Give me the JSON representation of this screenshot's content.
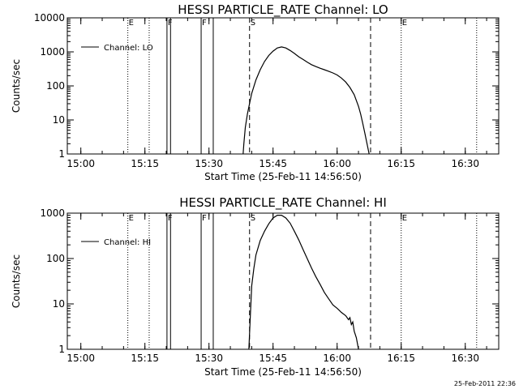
{
  "footer_timestamp": "25-Feb-2011 22:36",
  "chart_data": [
    {
      "type": "line",
      "title": "HESSI PARTICLE_RATE Channel: LO",
      "xlabel": "Start Time (25-Feb-11 14:56:50)",
      "ylabel": "Counts/sec",
      "y_scale": "log",
      "ylim": [
        1,
        10000
      ],
      "xlim": [
        "14:56:50",
        "16:37:50"
      ],
      "x_ticks": [
        "15:00",
        "15:15",
        "15:30",
        "15:45",
        "16:00",
        "16:15",
        "16:30"
      ],
      "y_ticks": [
        "1",
        "10",
        "100",
        "1000",
        "10000"
      ],
      "legend": {
        "position": "top-left",
        "entries": [
          "Channel: LO"
        ]
      },
      "grid": false,
      "series": [
        {
          "name": "Channel: LO",
          "x": [
            "15:38:00",
            "15:38:10",
            "15:38:30",
            "15:39:00",
            "15:39:30",
            "15:40:00",
            "15:41:00",
            "15:42:00",
            "15:43:00",
            "15:44:00",
            "15:45:00",
            "15:46:00",
            "15:47:00",
            "15:48:00",
            "15:49:00",
            "15:50:00",
            "15:51:00",
            "15:52:00",
            "15:53:00",
            "15:54:00",
            "15:55:00",
            "15:56:00",
            "15:57:00",
            "15:58:00",
            "15:59:00",
            "16:00:00",
            "16:01:00",
            "16:02:00",
            "16:03:00",
            "16:04:00",
            "16:05:00",
            "16:05:30",
            "16:06:00",
            "16:06:30",
            "16:07:00",
            "16:07:30"
          ],
          "y": [
            1,
            2,
            6,
            15,
            30,
            60,
            150,
            300,
            520,
            780,
            1050,
            1300,
            1400,
            1300,
            1100,
            900,
            720,
            600,
            500,
            420,
            370,
            330,
            300,
            270,
            240,
            210,
            170,
            130,
            90,
            55,
            25,
            15,
            8,
            4,
            2,
            1
          ]
        }
      ],
      "vertical_markers": [
        {
          "time": "15:11:00",
          "style": "dotted",
          "label": "E"
        },
        {
          "time": "15:16:00",
          "style": "dotted",
          "label": ""
        },
        {
          "time": "15:20:10",
          "style": "solid",
          "label": "F"
        },
        {
          "time": "15:21:00",
          "style": "solid",
          "label": ""
        },
        {
          "time": "15:28:10",
          "style": "solid",
          "label": "F"
        },
        {
          "time": "15:31:00",
          "style": "solid",
          "label": ""
        },
        {
          "time": "15:39:30",
          "style": "dashed",
          "label": "S"
        },
        {
          "time": "16:07:50",
          "style": "dashed",
          "label": ""
        },
        {
          "time": "16:15:00",
          "style": "dotted",
          "label": "E"
        },
        {
          "time": "16:32:40",
          "style": "dotted",
          "label": ""
        }
      ]
    },
    {
      "type": "line",
      "title": "HESSI PARTICLE_RATE Channel: HI",
      "xlabel": "Start Time (25-Feb-11 14:56:50)",
      "ylabel": "Counts/sec",
      "y_scale": "log",
      "ylim": [
        1,
        1000
      ],
      "xlim": [
        "14:56:50",
        "16:37:50"
      ],
      "x_ticks": [
        "15:00",
        "15:15",
        "15:30",
        "15:45",
        "16:00",
        "16:15",
        "16:30"
      ],
      "y_ticks": [
        "1",
        "10",
        "100",
        "1000"
      ],
      "legend": {
        "position": "top-left",
        "entries": [
          "Channel: HI"
        ]
      },
      "grid": false,
      "series": [
        {
          "name": "Channel: HI",
          "x": [
            "15:39:20",
            "15:39:40",
            "15:40:00",
            "15:40:30",
            "15:41:00",
            "15:42:00",
            "15:43:00",
            "15:44:00",
            "15:45:00",
            "15:46:00",
            "15:47:00",
            "15:48:00",
            "15:49:00",
            "15:50:00",
            "15:51:00",
            "15:52:00",
            "15:53:00",
            "15:54:00",
            "15:55:00",
            "15:56:00",
            "15:57:00",
            "15:58:00",
            "15:59:00",
            "16:00:00",
            "16:01:00",
            "16:02:00",
            "16:02:40",
            "16:03:00",
            "16:03:20",
            "16:03:40",
            "16:04:00",
            "16:04:30",
            "16:05:00"
          ],
          "y": [
            1,
            5,
            25,
            60,
            120,
            250,
            400,
            580,
            780,
            900,
            900,
            780,
            600,
            400,
            260,
            160,
            100,
            62,
            40,
            27,
            18,
            13,
            9.5,
            8,
            6.5,
            5.5,
            4.5,
            5,
            3.5,
            4,
            2.5,
            1.8,
            1
          ]
        }
      ],
      "vertical_markers": [
        {
          "time": "15:11:00",
          "style": "dotted",
          "label": "E"
        },
        {
          "time": "15:16:00",
          "style": "dotted",
          "label": ""
        },
        {
          "time": "15:20:10",
          "style": "solid",
          "label": "F"
        },
        {
          "time": "15:21:00",
          "style": "solid",
          "label": ""
        },
        {
          "time": "15:28:10",
          "style": "solid",
          "label": "F"
        },
        {
          "time": "15:31:00",
          "style": "solid",
          "label": ""
        },
        {
          "time": "15:39:30",
          "style": "dashed",
          "label": "S"
        },
        {
          "time": "16:07:50",
          "style": "dashed",
          "label": ""
        },
        {
          "time": "16:15:00",
          "style": "dotted",
          "label": "E"
        },
        {
          "time": "16:32:40",
          "style": "dotted",
          "label": ""
        }
      ]
    }
  ]
}
